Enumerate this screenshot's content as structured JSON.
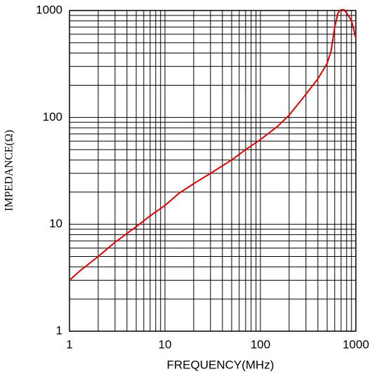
{
  "chart_data": {
    "type": "line",
    "x_label": "FREQUENCY(MHz)",
    "y_label": "IMPEDANCE(Ω)",
    "x": [
      1,
      1.3,
      2,
      3,
      5,
      7,
      10,
      14,
      20,
      30,
      50,
      70,
      100,
      150,
      200,
      300,
      400,
      500,
      550,
      600,
      650,
      700,
      750,
      800,
      900,
      1000
    ],
    "series": [
      {
        "color": "#e00000",
        "values": [
          3,
          3.7,
          5,
          6.8,
          9.5,
          12,
          15,
          19.5,
          24,
          30,
          40,
          50,
          62,
          82,
          105,
          165,
          230,
          320,
          420,
          700,
          950,
          1020,
          1020,
          950,
          800,
          550
        ]
      }
    ],
    "xlim": [
      1,
      1000
    ],
    "ylim": [
      1,
      1000
    ],
    "xticks": [
      1,
      10,
      100,
      1000
    ],
    "yticks": [
      1,
      10,
      100,
      1000
    ],
    "log_x": true,
    "log_y": true,
    "grid": true,
    "minor_grid": true
  }
}
